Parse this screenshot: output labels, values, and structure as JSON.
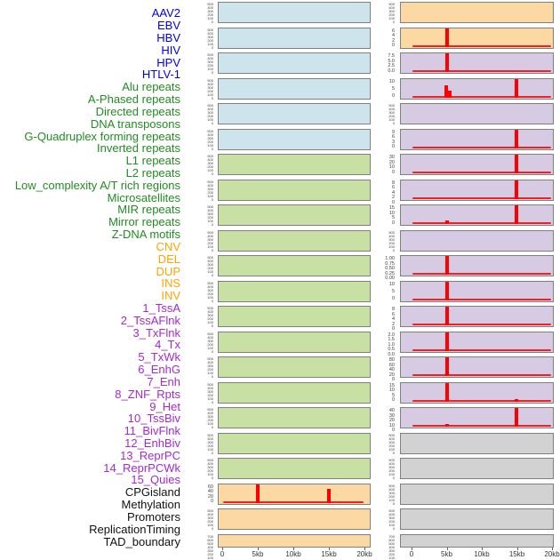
{
  "x_axis": {
    "ticks": [
      "0",
      "5kb",
      "10kb",
      "15kb",
      "20kb"
    ]
  },
  "groups": {
    "virus": {
      "label_color": "#0000EE",
      "fill": "#cde4ec"
    },
    "repeat": {
      "label_color": "#228B22",
      "fill": "#c8e0a4"
    },
    "sv": {
      "label_color": "#FFA500",
      "fill": "#fcd8a2"
    },
    "chromhmm": {
      "label_color": "#A52ACD",
      "fill": "#d6cbe2"
    },
    "other": {
      "label_color": "#111111",
      "fill": "#d2d2d2"
    }
  },
  "chart_data": {
    "type": "bar",
    "title": "",
    "xlabel": "",
    "x_range_kb": [
      0,
      20
    ],
    "x_ticks": [
      "0",
      "5kb",
      "10kb",
      "15kb",
      "20kb"
    ],
    "layout_note": "44 tracks in a 22-row x 2-column panel grid, column-major (left column = tracks 1-22, right column = tracks 23-44); red bars mark feature density peaks near 5kb and 15kb",
    "spike_color": "#ff0000",
    "tracks": [
      {
        "name": "AAV2",
        "group": "virus",
        "col": "left",
        "row": 0,
        "ticks": [
          "500",
          "400",
          "300",
          "200",
          "100",
          "0"
        ],
        "dense": true,
        "baseline": false,
        "spikes": []
      },
      {
        "name": "EBV",
        "group": "virus",
        "col": "left",
        "row": 1,
        "ticks": [
          "500",
          "400",
          "300",
          "200",
          "100",
          "0"
        ],
        "dense": true,
        "baseline": false,
        "spikes": []
      },
      {
        "name": "HBV",
        "group": "virus",
        "col": "left",
        "row": 2,
        "ticks": [
          "500",
          "400",
          "300",
          "200",
          "100",
          "0"
        ],
        "dense": true,
        "baseline": false,
        "spikes": []
      },
      {
        "name": "HIV",
        "group": "virus",
        "col": "left",
        "row": 3,
        "ticks": [
          "500",
          "400",
          "300",
          "200",
          "100",
          "0"
        ],
        "dense": true,
        "baseline": false,
        "spikes": []
      },
      {
        "name": "HPV",
        "group": "virus",
        "col": "left",
        "row": 4,
        "ticks": [
          "500",
          "400",
          "300",
          "200",
          "100",
          "0"
        ],
        "dense": true,
        "baseline": false,
        "spikes": []
      },
      {
        "name": "HTLV-1",
        "group": "virus",
        "col": "left",
        "row": 5,
        "ticks": [
          "500",
          "400",
          "300",
          "200",
          "100",
          "0"
        ],
        "dense": true,
        "baseline": false,
        "spikes": []
      },
      {
        "name": "Alu repeats",
        "group": "repeat",
        "col": "left",
        "row": 6,
        "ticks": [
          "500",
          "400",
          "300",
          "200",
          "100",
          "0"
        ],
        "dense": true,
        "baseline": false,
        "spikes": []
      },
      {
        "name": "A-Phased repeats",
        "group": "repeat",
        "col": "left",
        "row": 7,
        "ticks": [
          "500",
          "400",
          "300",
          "200",
          "100",
          "0"
        ],
        "dense": true,
        "baseline": false,
        "spikes": []
      },
      {
        "name": "Directed repeats",
        "group": "repeat",
        "col": "left",
        "row": 8,
        "ticks": [
          "500",
          "400",
          "300",
          "200",
          "100",
          "0"
        ],
        "dense": true,
        "baseline": false,
        "spikes": []
      },
      {
        "name": "DNA transposons",
        "group": "repeat",
        "col": "left",
        "row": 9,
        "ticks": [
          "500",
          "400",
          "300",
          "200",
          "100",
          "0"
        ],
        "dense": true,
        "baseline": false,
        "spikes": []
      },
      {
        "name": "G-Quadruplex forming repeats",
        "group": "repeat",
        "col": "left",
        "row": 10,
        "ticks": [
          "500",
          "400",
          "300",
          "200",
          "100",
          "0"
        ],
        "dense": true,
        "baseline": false,
        "spikes": []
      },
      {
        "name": "Inverted repeats",
        "group": "repeat",
        "col": "left",
        "row": 11,
        "ticks": [
          "500",
          "400",
          "300",
          "200",
          "100",
          "0"
        ],
        "dense": true,
        "baseline": false,
        "spikes": []
      },
      {
        "name": "L1 repeats",
        "group": "repeat",
        "col": "left",
        "row": 12,
        "ticks": [
          "500",
          "400",
          "300",
          "200",
          "100",
          "0"
        ],
        "dense": true,
        "baseline": false,
        "spikes": []
      },
      {
        "name": "L2 repeats",
        "group": "repeat",
        "col": "left",
        "row": 13,
        "ticks": [
          "500",
          "400",
          "300",
          "200",
          "100",
          "0"
        ],
        "dense": true,
        "baseline": false,
        "spikes": []
      },
      {
        "name": "Low_complexity A/T rich regions",
        "group": "repeat",
        "col": "left",
        "row": 14,
        "ticks": [
          "500",
          "400",
          "300",
          "200",
          "100",
          "0"
        ],
        "dense": true,
        "baseline": false,
        "spikes": []
      },
      {
        "name": "Microsatellites",
        "group": "repeat",
        "col": "left",
        "row": 15,
        "ticks": [
          "500",
          "400",
          "300",
          "200",
          "100",
          "0"
        ],
        "dense": true,
        "baseline": false,
        "spikes": []
      },
      {
        "name": "MIR repeats",
        "group": "repeat",
        "col": "left",
        "row": 16,
        "ticks": [
          "500",
          "400",
          "300",
          "200",
          "100",
          "0"
        ],
        "dense": true,
        "baseline": false,
        "spikes": []
      },
      {
        "name": "Mirror repeats",
        "group": "repeat",
        "col": "left",
        "row": 17,
        "ticks": [
          "500",
          "400",
          "300",
          "200",
          "100",
          "0"
        ],
        "dense": true,
        "baseline": false,
        "spikes": []
      },
      {
        "name": "Z-DNA motifs",
        "group": "repeat",
        "col": "left",
        "row": 18,
        "ticks": [
          "500",
          "400",
          "300",
          "200",
          "100",
          "0"
        ],
        "dense": true,
        "baseline": false,
        "spikes": []
      },
      {
        "name": "CNV",
        "group": "sv",
        "col": "left",
        "row": 19,
        "ticks": [
          "60",
          "40",
          "20",
          "0"
        ],
        "dense": false,
        "baseline": true,
        "spikes": [
          {
            "kb": 5,
            "frac": 1.0,
            "value": 65
          },
          {
            "kb": 15,
            "frac": 0.72,
            "value": 48
          }
        ]
      },
      {
        "name": "DEL",
        "group": "sv",
        "col": "left",
        "row": 20,
        "ticks": [
          "500",
          "400",
          "300",
          "200",
          "100",
          "0"
        ],
        "dense": true,
        "baseline": false,
        "spikes": []
      },
      {
        "name": "DUP",
        "group": "sv",
        "col": "left",
        "row": 21,
        "ticks": [
          "700",
          "600",
          "500",
          "400",
          "300",
          "200",
          "100",
          "0"
        ],
        "dense": true,
        "baseline": false,
        "spikes": []
      },
      {
        "name": "INS",
        "group": "sv",
        "col": "right",
        "row": 0,
        "ticks": [
          "500",
          "400",
          "300",
          "200",
          "100",
          "0"
        ],
        "dense": true,
        "baseline": false,
        "spikes": []
      },
      {
        "name": "INV",
        "group": "sv",
        "col": "right",
        "row": 1,
        "ticks": [
          "6",
          "4",
          "2",
          "0"
        ],
        "dense": false,
        "baseline": true,
        "spikes": [
          {
            "kb": 5,
            "frac": 1.0,
            "value": 6.8
          }
        ]
      },
      {
        "name": "1_TssA",
        "group": "chromhmm",
        "col": "right",
        "row": 2,
        "ticks": [
          "7.5",
          "5.0",
          "2.5",
          "0.0"
        ],
        "dense": false,
        "baseline": true,
        "spikes": [
          {
            "kb": 5,
            "frac": 1.0,
            "value": 8.0
          }
        ]
      },
      {
        "name": "2_TssAFlnk",
        "group": "chromhmm",
        "col": "right",
        "row": 3,
        "ticks": [
          "10",
          "5",
          "0"
        ],
        "dense": false,
        "baseline": true,
        "spikes": [
          {
            "kb": 4.9,
            "frac": 0.62,
            "value": 6.5
          },
          {
            "kb": 5.4,
            "frac": 0.35,
            "value": 3.7
          },
          {
            "kb": 15,
            "frac": 1.0,
            "value": 11.5
          }
        ]
      },
      {
        "name": "3_TxFlnk",
        "group": "chromhmm",
        "col": "right",
        "row": 4,
        "ticks": [
          "500",
          "400",
          "300",
          "200",
          "100",
          "0"
        ],
        "dense": true,
        "baseline": false,
        "spikes": []
      },
      {
        "name": "4_Tx",
        "group": "chromhmm",
        "col": "right",
        "row": 5,
        "ticks": [
          "9",
          "6",
          "3",
          "0"
        ],
        "dense": false,
        "baseline": true,
        "spikes": [
          {
            "kb": 15,
            "frac": 1.0,
            "value": 9.5
          }
        ]
      },
      {
        "name": "5_TxWk",
        "group": "chromhmm",
        "col": "right",
        "row": 6,
        "ticks": [
          "30",
          "20",
          "10",
          "0"
        ],
        "dense": false,
        "baseline": true,
        "spikes": [
          {
            "kb": 15,
            "frac": 1.0,
            "value": 33
          }
        ]
      },
      {
        "name": "6_EnhG",
        "group": "chromhmm",
        "col": "right",
        "row": 7,
        "ticks": [
          "8",
          "6",
          "4",
          "2",
          "0"
        ],
        "dense": false,
        "baseline": true,
        "spikes": [
          {
            "kb": 15,
            "frac": 1.0,
            "value": 8.6
          }
        ]
      },
      {
        "name": "7_Enh",
        "group": "chromhmm",
        "col": "right",
        "row": 8,
        "ticks": [
          "15",
          "10",
          "5",
          "0"
        ],
        "dense": false,
        "baseline": true,
        "spikes": [
          {
            "kb": 5,
            "frac": 0.2,
            "value": 3
          },
          {
            "kb": 15,
            "frac": 1.0,
            "value": 16
          }
        ]
      },
      {
        "name": "8_ZNF_Rpts",
        "group": "chromhmm",
        "col": "right",
        "row": 9,
        "ticks": [
          "500",
          "400",
          "300",
          "200",
          "100",
          "0"
        ],
        "dense": true,
        "baseline": false,
        "spikes": []
      },
      {
        "name": "9_Het",
        "group": "chromhmm",
        "col": "right",
        "row": 10,
        "ticks": [
          "1.00",
          "0.75",
          "0.50",
          "0.25",
          "0.00"
        ],
        "dense": false,
        "baseline": true,
        "spikes": [
          {
            "kb": 5,
            "frac": 1.0,
            "value": 1.0
          }
        ]
      },
      {
        "name": "10_TssBiv",
        "group": "chromhmm",
        "col": "right",
        "row": 11,
        "ticks": [
          "10",
          "5",
          "0"
        ],
        "dense": false,
        "baseline": true,
        "spikes": [
          {
            "kb": 5,
            "frac": 1.0,
            "value": 12
          }
        ]
      },
      {
        "name": "11_BivFlnk",
        "group": "chromhmm",
        "col": "right",
        "row": 12,
        "ticks": [
          "8",
          "6",
          "4",
          "2",
          "0"
        ],
        "dense": false,
        "baseline": true,
        "spikes": [
          {
            "kb": 5,
            "frac": 1.0,
            "value": 8.5
          }
        ]
      },
      {
        "name": "12_EnhBiv",
        "group": "chromhmm",
        "col": "right",
        "row": 13,
        "ticks": [
          "2.0",
          "1.5",
          "1.0",
          "0.5",
          "0.0"
        ],
        "dense": false,
        "baseline": true,
        "spikes": [
          {
            "kb": 5,
            "frac": 1.0,
            "value": 2.1
          }
        ]
      },
      {
        "name": "13_ReprPC",
        "group": "chromhmm",
        "col": "right",
        "row": 14,
        "ticks": [
          "80",
          "60",
          "40",
          "20",
          "0"
        ],
        "dense": false,
        "baseline": true,
        "spikes": [
          {
            "kb": 5,
            "frac": 1.0,
            "value": 85
          }
        ]
      },
      {
        "name": "14_ReprPCWk",
        "group": "chromhmm",
        "col": "right",
        "row": 15,
        "ticks": [
          "15",
          "10",
          "5",
          "0"
        ],
        "dense": false,
        "baseline": true,
        "spikes": [
          {
            "kb": 5,
            "frac": 1.0,
            "value": 16
          },
          {
            "kb": 15,
            "frac": 0.12,
            "value": 2
          }
        ]
      },
      {
        "name": "15_Quies",
        "group": "chromhmm",
        "col": "right",
        "row": 16,
        "ticks": [
          "40",
          "30",
          "20",
          "10",
          "0"
        ],
        "dense": false,
        "baseline": true,
        "spikes": [
          {
            "kb": 5,
            "frac": 0.12,
            "value": 5
          },
          {
            "kb": 15,
            "frac": 1.0,
            "value": 45
          }
        ]
      },
      {
        "name": "CPGisland",
        "group": "other",
        "col": "right",
        "row": 17,
        "ticks": [
          "500",
          "400",
          "300",
          "200",
          "100",
          "0"
        ],
        "dense": true,
        "baseline": false,
        "spikes": []
      },
      {
        "name": "Methylation",
        "group": "other",
        "col": "right",
        "row": 18,
        "ticks": [
          "500",
          "400",
          "300",
          "200",
          "100",
          "0"
        ],
        "dense": true,
        "baseline": false,
        "spikes": []
      },
      {
        "name": "Promoters",
        "group": "other",
        "col": "right",
        "row": 19,
        "ticks": [
          "500",
          "400",
          "300",
          "200",
          "100",
          "0"
        ],
        "dense": true,
        "baseline": false,
        "spikes": []
      },
      {
        "name": "ReplicationTiming",
        "group": "other",
        "col": "right",
        "row": 20,
        "ticks": [
          "500",
          "400",
          "300",
          "200",
          "100",
          "0"
        ],
        "dense": true,
        "baseline": false,
        "spikes": []
      },
      {
        "name": "TAD_boundary",
        "group": "other",
        "col": "right",
        "row": 21,
        "ticks": [
          "700",
          "600",
          "500",
          "400",
          "300",
          "200",
          "100",
          "0"
        ],
        "dense": true,
        "baseline": false,
        "spikes": []
      }
    ]
  }
}
